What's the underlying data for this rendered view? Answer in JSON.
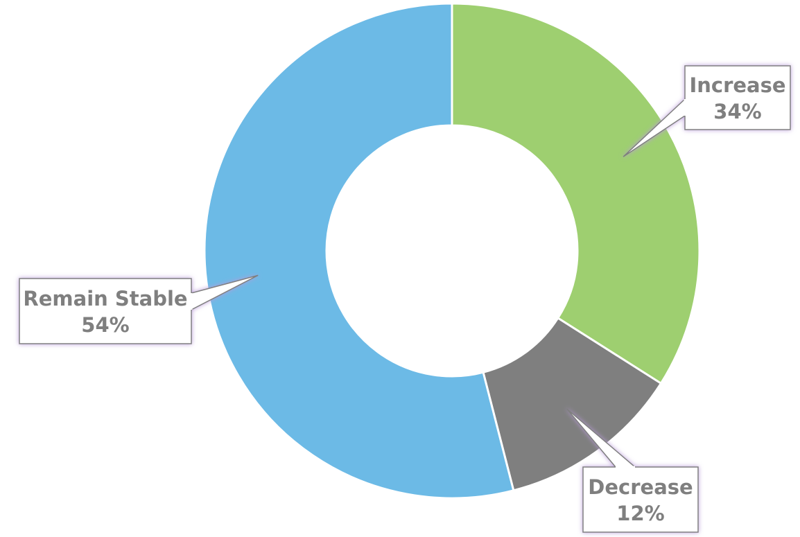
{
  "chart_data": {
    "type": "pie",
    "variant": "donut",
    "title": "",
    "slices": [
      {
        "label": "Increase",
        "value": 34,
        "value_label": "34%",
        "color": "#9ecf70"
      },
      {
        "label": "Decrease",
        "value": 12,
        "value_label": "12%",
        "color": "#7f7f7f"
      },
      {
        "label": "Remain Stable",
        "value": 54,
        "value_label": "54%",
        "color": "#6cbae6"
      }
    ],
    "start_angle": "12 o'clock",
    "direction": "clockwise",
    "legend": "none",
    "data_labels": "callouts"
  },
  "style": {
    "callout_border": "#7f7f7f",
    "callout_glow": "#b89ad8",
    "label_text": "#7f7f7f",
    "slice_separator": "#ffffff"
  }
}
